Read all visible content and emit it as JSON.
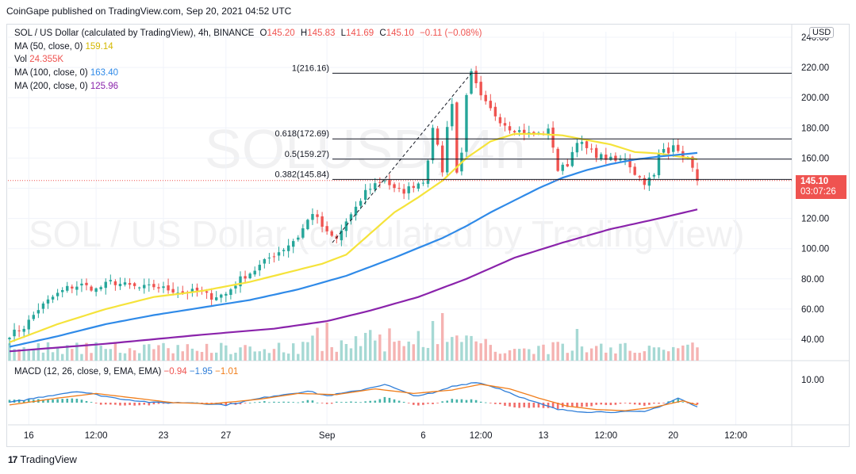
{
  "credit": "CoinGape published on TradingView.com, Sep 20, 2021 04:52 UTC",
  "legend": {
    "symbol": "SOL / US Dollar (calculated by TradingView), 4h, BINANCE",
    "o_label": "O",
    "o": "145.20",
    "h_label": "H",
    "h": "145.83",
    "l_label": "L",
    "l": "141.69",
    "c_label": "C",
    "c": "145.10",
    "change": "−0.11 (−0.08%)",
    "ma50_label": "MA (50, close, 0)",
    "ma50": "159.14",
    "vol_label": "Vol",
    "vol": "24.355K",
    "ma100_label": "MA (100, close, 0)",
    "ma100": "163.40",
    "ma200_label": "MA (200, close, 0)",
    "ma200": "125.96",
    "macd_label": "MACD (12, 26, close, 9, EMA, EMA)",
    "macd_hist": "−0.94",
    "macd_line": "−1.95",
    "macd_signal": "−1.01"
  },
  "watermark": {
    "big": "SOLUSD, 4h",
    "small": "SOL / US Dollar (calculated by TradingView)"
  },
  "price_tag": {
    "price": "145.10",
    "countdown": "03:07:26"
  },
  "currency": "USD",
  "footer": {
    "logo": "17",
    "brand": "TradingView"
  },
  "colors": {
    "up": "#26a69a",
    "down": "#ef5350",
    "ma50": "#f5e33b",
    "ma100": "#2f8ae8",
    "ma200": "#8a23ab",
    "macd": "#2f7ed8",
    "signal": "#f07d1a"
  },
  "chart_data": {
    "type": "candlestick",
    "title": "SOL / US Dollar, 4h, BINANCE",
    "ylim": [
      30,
      240
    ],
    "y_ticks": [
      "40.00",
      "60.00",
      "80.00",
      "100.00",
      "120.00",
      "140.00",
      "160.00",
      "180.00",
      "200.00",
      "220.00",
      "240.00"
    ],
    "x_ticks": [
      "16",
      "12:00",
      "23",
      "27",
      "Sep",
      "6",
      "12:00",
      "13",
      "12:00",
      "20",
      "12:00"
    ],
    "x_tick_index": [
      4,
      18,
      32,
      45,
      66,
      86,
      98,
      111,
      124,
      138,
      151
    ],
    "fib_levels": [
      {
        "label": "1(216.16)",
        "value": 216.16
      },
      {
        "label": "0.618(172.69)",
        "value": 172.69
      },
      {
        "label": "0.5(159.27)",
        "value": 159.27
      },
      {
        "label": "0.382(145.84)",
        "value": 145.84
      }
    ],
    "macd_axis": {
      "ylim": [
        -12,
        12
      ],
      "ticks": [
        "10.00"
      ]
    },
    "close_anchors": [
      [
        0,
        43
      ],
      [
        3,
        48
      ],
      [
        6,
        60
      ],
      [
        9,
        68
      ],
      [
        12,
        74
      ],
      [
        15,
        76
      ],
      [
        18,
        73
      ],
      [
        21,
        78
      ],
      [
        24,
        76
      ],
      [
        27,
        74
      ],
      [
        30,
        75
      ],
      [
        33,
        73
      ],
      [
        36,
        71
      ],
      [
        39,
        72
      ],
      [
        42,
        68
      ],
      [
        45,
        70
      ],
      [
        48,
        80
      ],
      [
        51,
        86
      ],
      [
        54,
        94
      ],
      [
        57,
        100
      ],
      [
        60,
        108
      ],
      [
        63,
        124
      ],
      [
        66,
        110
      ],
      [
        68,
        106
      ],
      [
        70,
        118
      ],
      [
        72,
        126
      ],
      [
        74,
        138
      ],
      [
        76,
        143
      ],
      [
        78,
        146
      ],
      [
        80,
        139
      ],
      [
        82,
        138
      ],
      [
        84,
        142
      ],
      [
        86,
        145
      ],
      [
        87,
        160
      ],
      [
        88,
        178
      ],
      [
        89,
        170
      ],
      [
        90,
        150
      ],
      [
        91,
        182
      ],
      [
        92,
        196
      ],
      [
        93,
        150
      ],
      [
        94,
        165
      ],
      [
        95,
        200
      ],
      [
        96,
        216
      ],
      [
        97,
        208
      ],
      [
        98,
        200
      ],
      [
        100,
        192
      ],
      [
        102,
        185
      ],
      [
        104,
        180
      ],
      [
        106,
        178
      ],
      [
        108,
        176
      ],
      [
        110,
        176
      ],
      [
        112,
        178
      ],
      [
        113,
        168
      ],
      [
        114,
        152
      ],
      [
        116,
        156
      ],
      [
        118,
        172
      ],
      [
        120,
        166
      ],
      [
        122,
        162
      ],
      [
        124,
        160
      ],
      [
        126,
        158
      ],
      [
        128,
        160
      ],
      [
        130,
        150
      ],
      [
        132,
        144
      ],
      [
        134,
        148
      ],
      [
        135,
        162
      ],
      [
        136,
        166
      ],
      [
        137,
        165
      ],
      [
        138,
        170
      ],
      [
        139,
        163
      ],
      [
        140,
        162
      ],
      [
        141,
        160
      ],
      [
        142,
        152
      ],
      [
        143,
        145.1
      ]
    ],
    "series": [
      {
        "name": "MA (50, close, 0)",
        "last": 159.14,
        "anchors": [
          [
            0,
            38
          ],
          [
            10,
            50
          ],
          [
            20,
            60
          ],
          [
            30,
            68
          ],
          [
            40,
            72
          ],
          [
            50,
            78
          ],
          [
            60,
            86
          ],
          [
            65,
            90
          ],
          [
            70,
            96
          ],
          [
            75,
            110
          ],
          [
            80,
            124
          ],
          [
            85,
            134
          ],
          [
            90,
            145
          ],
          [
            95,
            160
          ],
          [
            100,
            171
          ],
          [
            105,
            176
          ],
          [
            110,
            176
          ],
          [
            115,
            175
          ],
          [
            120,
            172
          ],
          [
            125,
            169
          ],
          [
            130,
            164
          ],
          [
            135,
            163
          ],
          [
            143,
            159.14
          ]
        ]
      },
      {
        "name": "MA (100, close, 0)",
        "last": 163.4,
        "anchors": [
          [
            0,
            35
          ],
          [
            10,
            42
          ],
          [
            20,
            50
          ],
          [
            30,
            56
          ],
          [
            40,
            61
          ],
          [
            50,
            66
          ],
          [
            60,
            73
          ],
          [
            70,
            82
          ],
          [
            80,
            94
          ],
          [
            90,
            107
          ],
          [
            95,
            115
          ],
          [
            100,
            124
          ],
          [
            105,
            132
          ],
          [
            110,
            140
          ],
          [
            115,
            147
          ],
          [
            120,
            152
          ],
          [
            125,
            156
          ],
          [
            130,
            159
          ],
          [
            135,
            161
          ],
          [
            143,
            163.4
          ]
        ]
      },
      {
        "name": "MA (200, close, 0)",
        "last": 125.96,
        "anchors": [
          [
            0,
            32
          ],
          [
            20,
            37
          ],
          [
            40,
            43
          ],
          [
            55,
            47
          ],
          [
            66,
            52
          ],
          [
            75,
            59
          ],
          [
            85,
            68
          ],
          [
            95,
            80
          ],
          [
            105,
            94
          ],
          [
            115,
            104
          ],
          [
            125,
            113
          ],
          [
            135,
            120
          ],
          [
            143,
            125.96
          ]
        ]
      }
    ]
  }
}
